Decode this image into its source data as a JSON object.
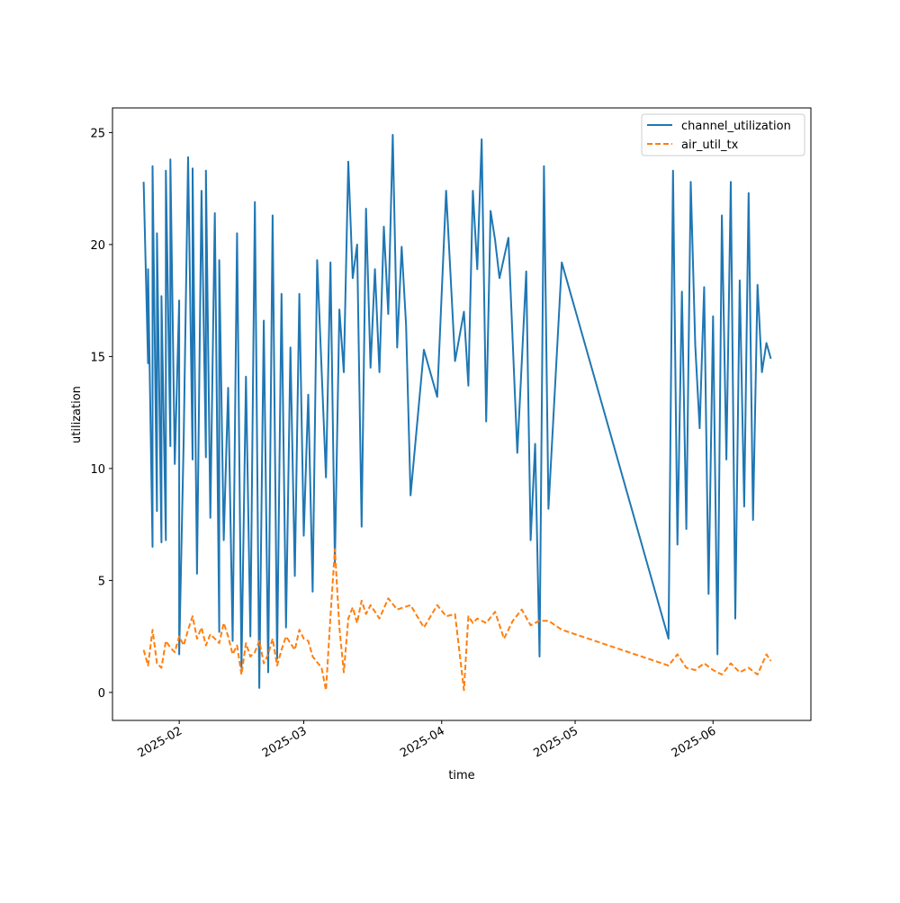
{
  "chart_data": {
    "type": "line",
    "title": "",
    "xlabel": "time",
    "ylabel": "utilization",
    "x_ticks": [
      "2025-02-01",
      "2025-03-01",
      "2025-04-01",
      "2025-05-01",
      "2025-06-01"
    ],
    "x_tick_labels": [
      "2025-02",
      "2025-03",
      "2025-04",
      "2025-05",
      "2025-06"
    ],
    "y_ticks": [
      0,
      5,
      10,
      15,
      20,
      25
    ],
    "y_tick_labels": [
      "0",
      "5",
      "10",
      "15",
      "20",
      "25"
    ],
    "xlim": [
      "2025-01-17",
      "2025-06-23"
    ],
    "ylim": [
      -1.25,
      26.1
    ],
    "legend": {
      "position": "top-right"
    },
    "grid": false,
    "series": [
      {
        "name": "channel_utilization",
        "color": "#1f77b4",
        "style": "solid",
        "x": [
          "2025-01-24",
          "2025-01-25",
          "2025-01-25",
          "2025-01-26",
          "2025-01-26",
          "2025-01-27",
          "2025-01-27",
          "2025-01-28",
          "2025-01-28",
          "2025-01-29",
          "2025-01-29",
          "2025-01-30",
          "2025-01-30",
          "2025-01-31",
          "2025-02-01",
          "2025-02-01",
          "2025-02-02",
          "2025-02-03",
          "2025-02-04",
          "2025-02-04",
          "2025-02-05",
          "2025-02-06",
          "2025-02-07",
          "2025-02-07",
          "2025-02-08",
          "2025-02-09",
          "2025-02-10",
          "2025-02-10",
          "2025-02-11",
          "2025-02-12",
          "2025-02-13",
          "2025-02-14",
          "2025-02-15",
          "2025-02-16",
          "2025-02-17",
          "2025-02-18",
          "2025-02-19",
          "2025-02-20",
          "2025-02-21",
          "2025-02-22",
          "2025-02-23",
          "2025-02-24",
          "2025-02-25",
          "2025-02-26",
          "2025-02-27",
          "2025-02-28",
          "2025-03-01",
          "2025-03-02",
          "2025-03-03",
          "2025-03-04",
          "2025-03-06",
          "2025-03-07",
          "2025-03-08",
          "2025-03-09",
          "2025-03-10",
          "2025-03-11",
          "2025-03-12",
          "2025-03-13",
          "2025-03-14",
          "2025-03-15",
          "2025-03-16",
          "2025-03-17",
          "2025-03-18",
          "2025-03-19",
          "2025-03-20",
          "2025-03-21",
          "2025-03-22",
          "2025-03-23",
          "2025-03-24",
          "2025-03-25",
          "2025-03-28",
          "2025-03-31",
          "2025-04-02",
          "2025-04-04",
          "2025-04-06",
          "2025-04-07",
          "2025-04-08",
          "2025-04-09",
          "2025-04-10",
          "2025-04-11",
          "2025-04-12",
          "2025-04-13",
          "2025-04-14",
          "2025-04-16",
          "2025-04-18",
          "2025-04-20",
          "2025-04-21",
          "2025-04-22",
          "2025-04-23",
          "2025-04-24",
          "2025-04-25",
          "2025-04-28",
          "2025-05-22",
          "2025-05-23",
          "2025-05-24",
          "2025-05-25",
          "2025-05-26",
          "2025-05-27",
          "2025-05-28",
          "2025-05-29",
          "2025-05-30",
          "2025-05-31",
          "2025-06-01",
          "2025-06-02",
          "2025-06-03",
          "2025-06-04",
          "2025-06-05",
          "2025-06-06",
          "2025-06-07",
          "2025-06-08",
          "2025-06-09",
          "2025-06-10",
          "2025-06-11",
          "2025-06-12",
          "2025-06-13",
          "2025-06-14"
        ],
        "values": [
          22.8,
          14.7,
          18.9,
          6.5,
          23.5,
          8.1,
          20.5,
          6.7,
          17.7,
          6.8,
          23.3,
          11,
          23.8,
          10.2,
          17.5,
          1.7,
          11.3,
          23.9,
          10.4,
          23.4,
          5.3,
          22.4,
          10.5,
          23.3,
          7.8,
          21.4,
          2.7,
          19.3,
          6.8,
          13.6,
          2.3,
          20.5,
          1.1,
          14.1,
          2.5,
          21.9,
          0.2,
          16.6,
          0.9,
          21.3,
          1.5,
          17.8,
          2.9,
          15.4,
          5.2,
          17.8,
          7,
          13.3,
          4.5,
          19.3,
          9.6,
          19.2,
          5.8,
          17.1,
          14.3,
          23.7,
          18.5,
          20,
          7.4,
          21.6,
          14.5,
          18.9,
          14.3,
          20.8,
          16.9,
          24.9,
          15.4,
          19.9,
          16.4,
          8.8,
          15.3,
          13.2,
          22.4,
          14.8,
          17,
          13.7,
          22.4,
          18.9,
          24.7,
          12.1,
          21.5,
          20.2,
          18.5,
          20.3,
          10.7,
          18.8,
          6.8,
          11.1,
          1.6,
          23.5,
          8.2,
          19.2,
          2.4,
          23.3,
          6.6,
          17.9,
          7.3,
          22.8,
          15.5,
          11.8,
          18.1,
          4.4,
          16.8,
          1.7,
          21.3,
          10.4,
          22.8,
          3.3,
          18.4,
          8.3,
          22.3,
          7.7,
          18.2,
          14.3,
          15.6,
          14.9
        ]
      },
      {
        "name": "air_util_tx",
        "color": "#ff7f0e",
        "style": "dashed",
        "x": [
          "2025-01-24",
          "2025-01-25",
          "2025-01-26",
          "2025-01-27",
          "2025-01-28",
          "2025-01-29",
          "2025-01-30",
          "2025-01-31",
          "2025-02-01",
          "2025-02-02",
          "2025-02-03",
          "2025-02-04",
          "2025-02-05",
          "2025-02-06",
          "2025-02-07",
          "2025-02-08",
          "2025-02-09",
          "2025-02-10",
          "2025-02-11",
          "2025-02-12",
          "2025-02-13",
          "2025-02-14",
          "2025-02-15",
          "2025-02-16",
          "2025-02-17",
          "2025-02-18",
          "2025-02-19",
          "2025-02-20",
          "2025-02-21",
          "2025-02-22",
          "2025-02-23",
          "2025-02-24",
          "2025-02-25",
          "2025-02-26",
          "2025-02-27",
          "2025-02-28",
          "2025-03-01",
          "2025-03-02",
          "2025-03-03",
          "2025-03-05",
          "2025-03-06",
          "2025-03-07",
          "2025-03-08",
          "2025-03-09",
          "2025-03-10",
          "2025-03-11",
          "2025-03-12",
          "2025-03-13",
          "2025-03-14",
          "2025-03-15",
          "2025-03-16",
          "2025-03-18",
          "2025-03-20",
          "2025-03-22",
          "2025-03-25",
          "2025-03-28",
          "2025-03-31",
          "2025-04-02",
          "2025-04-04",
          "2025-04-06",
          "2025-04-07",
          "2025-04-08",
          "2025-04-09",
          "2025-04-11",
          "2025-04-13",
          "2025-04-15",
          "2025-04-17",
          "2025-04-19",
          "2025-04-21",
          "2025-04-23",
          "2025-04-25",
          "2025-04-28",
          "2025-05-22",
          "2025-05-24",
          "2025-05-26",
          "2025-05-28",
          "2025-05-30",
          "2025-06-01",
          "2025-06-03",
          "2025-06-05",
          "2025-06-07",
          "2025-06-09",
          "2025-06-11",
          "2025-06-13",
          "2025-06-14"
        ],
        "values": [
          1.9,
          1.2,
          2.8,
          1.3,
          1.1,
          2.3,
          2,
          1.8,
          2.5,
          2.1,
          2.8,
          3.4,
          2.4,
          2.9,
          2.1,
          2.6,
          2.4,
          2.2,
          3.1,
          2.5,
          1.7,
          2.1,
          0.8,
          2.2,
          1.6,
          1.8,
          2.3,
          1.3,
          1.7,
          2.4,
          1.2,
          1.9,
          2.5,
          2.2,
          1.9,
          2.8,
          2.4,
          2.3,
          1.6,
          1.1,
          0.1,
          3.4,
          6.4,
          2.9,
          0.9,
          3.3,
          3.8,
          3.1,
          4.1,
          3.5,
          3.9,
          3.3,
          4.2,
          3.7,
          3.9,
          2.9,
          3.9,
          3.4,
          3.5,
          0.1,
          3.4,
          3.1,
          3.3,
          3.1,
          3.6,
          2.4,
          3.2,
          3.7,
          3,
          3.2,
          3.2,
          2.8,
          1.2,
          1.7,
          1.1,
          1,
          1.3,
          1,
          0.8,
          1.3,
          0.9,
          1.1,
          0.8,
          1.7,
          1.4
        ]
      }
    ]
  }
}
